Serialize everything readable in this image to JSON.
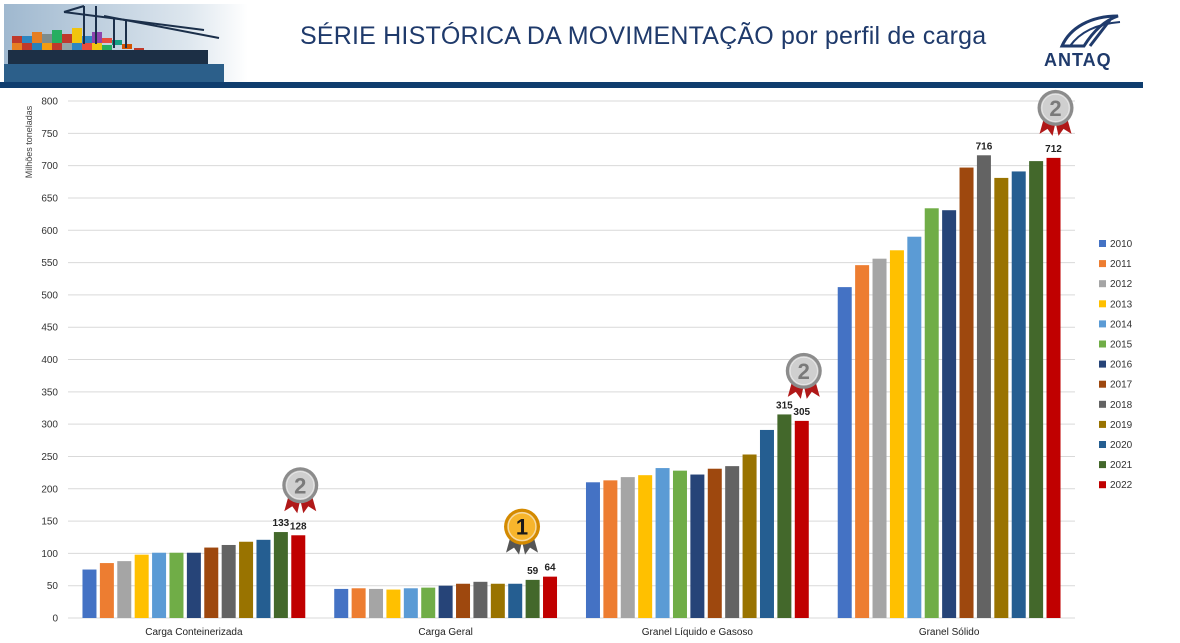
{
  "header": {
    "title": "SÉRIE HISTÓRICA DA MOVIMENTAÇÃO por perfil de carga",
    "logo_text": "ANTAQ",
    "banner_image": "port-containers-photo",
    "bar_color": "#0f3d6e"
  },
  "chart_data": {
    "type": "bar",
    "title": "",
    "xlabel": "",
    "ylabel": "Milhões toneladas",
    "ylim": [
      0,
      800
    ],
    "yticks": [
      0,
      50,
      100,
      150,
      200,
      250,
      300,
      350,
      400,
      450,
      500,
      550,
      600,
      650,
      700,
      750,
      800
    ],
    "grid": true,
    "legend_position": "right",
    "categories": [
      "Carga Conteinerizada",
      "Carga Geral",
      "Granel Líquido e Gasoso",
      "Granel Sólido"
    ],
    "series": [
      {
        "name": "2010",
        "color": "#4472c4",
        "values": [
          75,
          45,
          210,
          512
        ]
      },
      {
        "name": "2011",
        "color": "#ed7d31",
        "values": [
          85,
          46,
          213,
          546
        ]
      },
      {
        "name": "2012",
        "color": "#a5a5a5",
        "values": [
          88,
          45,
          218,
          556
        ]
      },
      {
        "name": "2013",
        "color": "#ffc000",
        "values": [
          98,
          44,
          221,
          569
        ]
      },
      {
        "name": "2014",
        "color": "#5b9bd5",
        "values": [
          101,
          46,
          232,
          590
        ]
      },
      {
        "name": "2015",
        "color": "#70ad47",
        "values": [
          101,
          47,
          228,
          634
        ]
      },
      {
        "name": "2016",
        "color": "#264478",
        "values": [
          101,
          50,
          222,
          631
        ]
      },
      {
        "name": "2017",
        "color": "#9e480e",
        "values": [
          109,
          53,
          231,
          697
        ]
      },
      {
        "name": "2018",
        "color": "#636363",
        "values": [
          113,
          56,
          235,
          716
        ]
      },
      {
        "name": "2019",
        "color": "#997300",
        "values": [
          118,
          53,
          253,
          681
        ]
      },
      {
        "name": "2020",
        "color": "#255e91",
        "values": [
          121,
          53,
          291,
          691
        ]
      },
      {
        "name": "2021",
        "color": "#43682b",
        "values": [
          133,
          59,
          315,
          707
        ]
      },
      {
        "name": "2022",
        "color": "#c00000",
        "values": [
          128,
          64,
          305,
          712
        ]
      }
    ],
    "data_labels": [
      {
        "category": 0,
        "series": 11,
        "text": "133"
      },
      {
        "category": 0,
        "series": 12,
        "text": "128"
      },
      {
        "category": 1,
        "series": 11,
        "text": "59"
      },
      {
        "category": 1,
        "series": 12,
        "text": "64"
      },
      {
        "category": 2,
        "series": 11,
        "text": "315"
      },
      {
        "category": 2,
        "series": 12,
        "text": "305"
      },
      {
        "category": 3,
        "series": 8,
        "text": "716"
      },
      {
        "category": 3,
        "series": 12,
        "text": "712"
      }
    ],
    "medals": [
      {
        "category": 0,
        "rank": "2",
        "kind": "silver"
      },
      {
        "category": 1,
        "rank": "1",
        "kind": "gold"
      },
      {
        "category": 2,
        "rank": "2",
        "kind": "silver"
      },
      {
        "category": 3,
        "rank": "2",
        "kind": "silver"
      }
    ]
  }
}
